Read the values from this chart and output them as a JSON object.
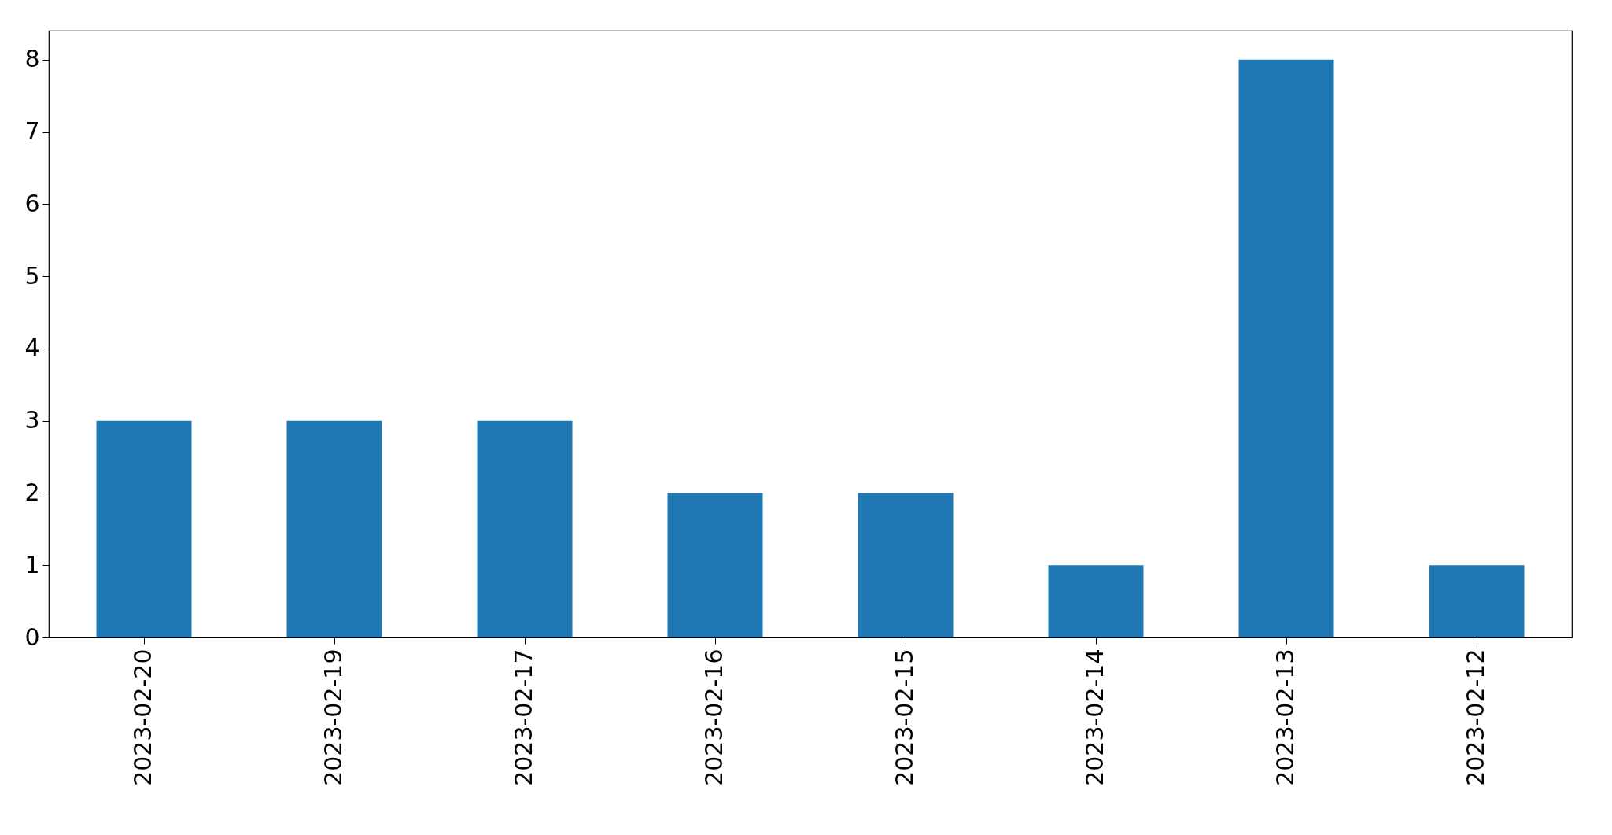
{
  "chart_data": {
    "type": "bar",
    "categories": [
      "2023-02-20",
      "2023-02-19",
      "2023-02-17",
      "2023-02-16",
      "2023-02-15",
      "2023-02-14",
      "2023-02-13",
      "2023-02-12"
    ],
    "values": [
      3,
      3,
      3,
      2,
      2,
      1,
      8,
      1
    ],
    "color": "#1f77b4",
    "ylim": [
      0,
      8.4
    ],
    "yticks": [
      0,
      1,
      2,
      3,
      4,
      5,
      6,
      7,
      8
    ],
    "grid": false
  }
}
